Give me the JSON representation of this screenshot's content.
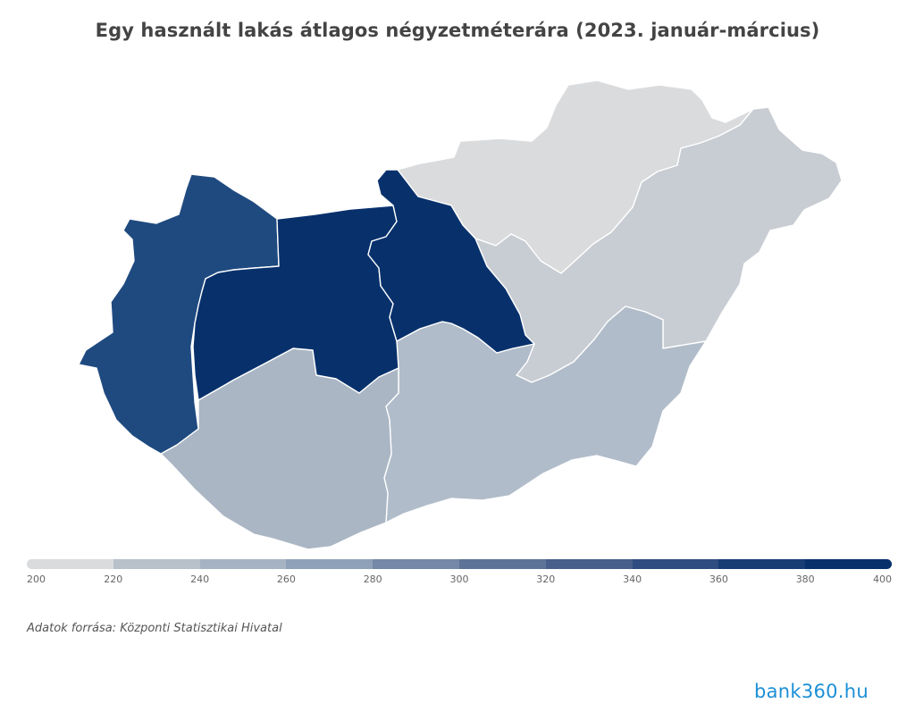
{
  "title": "Egy használt lakás átlagos négyzetméterára (2023. január-március)",
  "source": "Adatok forrása: Központi Statisztikai Hivatal",
  "logo": "bank360.hu",
  "colors": {
    "background": "#ffffff",
    "border": "#ffffff",
    "scale": [
      "#dadbdd",
      "#c8ccd3",
      "#b8c0ca",
      "#a6b3c3",
      "#8fa1b9",
      "#7588a8",
      "#5e7398",
      "#475f8a",
      "#2f4d80",
      "#183c74",
      "#08306b"
    ]
  },
  "legend": {
    "ticks": [
      "200",
      "220",
      "240",
      "260",
      "280",
      "300",
      "320",
      "340",
      "360",
      "380",
      "400"
    ]
  },
  "regions": [
    {
      "id": "northern-hungary",
      "color": "#dadbdd"
    },
    {
      "id": "northern-great-plain",
      "color": "#c8ccd3"
    },
    {
      "id": "southern-great-plain",
      "color": "#b0bcc9"
    },
    {
      "id": "southern-transdanubia",
      "color": "#aab6c4"
    },
    {
      "id": "western-transdanubia",
      "color": "#1f4a80"
    },
    {
      "id": "central-transdanubia",
      "color": "#08316c"
    },
    {
      "id": "central-hungary",
      "color": "#08316c"
    }
  ]
}
